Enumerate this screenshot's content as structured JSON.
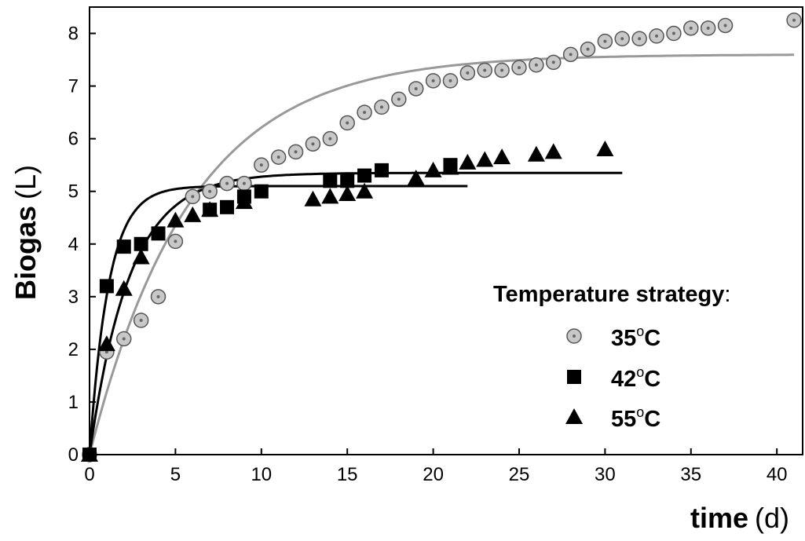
{
  "chart_data": {
    "type": "scatter",
    "title": "",
    "xlabel": "time",
    "xlabel_unit": "(d)",
    "ylabel": "Biogas",
    "ylabel_unit": "(L)",
    "xlim": [
      0,
      41.5
    ],
    "ylim": [
      0,
      8.5
    ],
    "x_ticks": [
      0,
      5,
      10,
      15,
      20,
      25,
      30,
      35,
      40
    ],
    "y_ticks": [
      0,
      1,
      2,
      3,
      4,
      5,
      6,
      7,
      8
    ],
    "grid": false,
    "legend": {
      "title": "Temperature strategy",
      "title_suffix": ":",
      "placement": "bottom-right"
    },
    "series": [
      {
        "name": "35",
        "name_sup": "o",
        "name_suffix": "C",
        "marker": "circle",
        "marker_fill": "#c8c8c8",
        "fit_color": "#999999",
        "x": [
          0,
          1,
          2,
          3,
          4,
          5,
          6,
          7,
          8,
          9,
          10,
          11,
          12,
          13,
          14,
          15,
          16,
          17,
          18,
          19,
          20,
          21,
          22,
          23,
          24,
          25,
          26,
          27,
          28,
          29,
          30,
          31,
          32,
          33,
          34,
          35,
          36,
          37,
          41
        ],
        "y": [
          0,
          1.95,
          2.2,
          2.55,
          3.0,
          4.05,
          4.9,
          5.0,
          5.15,
          5.15,
          5.5,
          5.65,
          5.75,
          5.9,
          6.0,
          6.3,
          6.5,
          6.6,
          6.75,
          6.95,
          7.1,
          7.1,
          7.25,
          7.3,
          7.3,
          7.35,
          7.4,
          7.45,
          7.6,
          7.7,
          7.85,
          7.9,
          7.9,
          7.95,
          8.0,
          8.1,
          8.1,
          8.15,
          8.25
        ],
        "fit": {
          "ymax": 7.6,
          "k": 0.17,
          "x_end": 41
        }
      },
      {
        "name": "42",
        "name_sup": "o",
        "name_suffix": "C",
        "marker": "square",
        "marker_fill": "#000000",
        "fit_color": "#000000",
        "x": [
          0,
          1,
          2,
          3,
          4,
          7,
          8,
          9,
          10,
          14,
          15,
          16,
          17,
          21
        ],
        "y": [
          0,
          3.2,
          3.95,
          4.0,
          4.2,
          4.65,
          4.7,
          4.9,
          5.0,
          5.2,
          5.2,
          5.3,
          5.4,
          5.5
        ],
        "fit": {
          "ymax": 5.1,
          "k": 0.9,
          "x_end": 22
        }
      },
      {
        "name": "55",
        "name_sup": "o",
        "name_suffix": "C",
        "marker": "triangle",
        "marker_fill": "#000000",
        "fit_color": "#000000",
        "x": [
          0,
          1,
          2,
          3,
          5,
          6,
          7,
          9,
          13,
          14,
          15,
          16,
          19,
          20,
          21,
          22,
          23,
          24,
          26,
          27,
          30
        ],
        "y": [
          0,
          2.1,
          3.15,
          3.75,
          4.45,
          4.55,
          4.65,
          4.8,
          4.85,
          4.9,
          4.95,
          5.0,
          5.25,
          5.4,
          5.45,
          5.55,
          5.6,
          5.65,
          5.7,
          5.75,
          5.8
        ],
        "fit": {
          "ymax": 5.35,
          "k": 0.43,
          "x_end": 31
        }
      }
    ]
  }
}
